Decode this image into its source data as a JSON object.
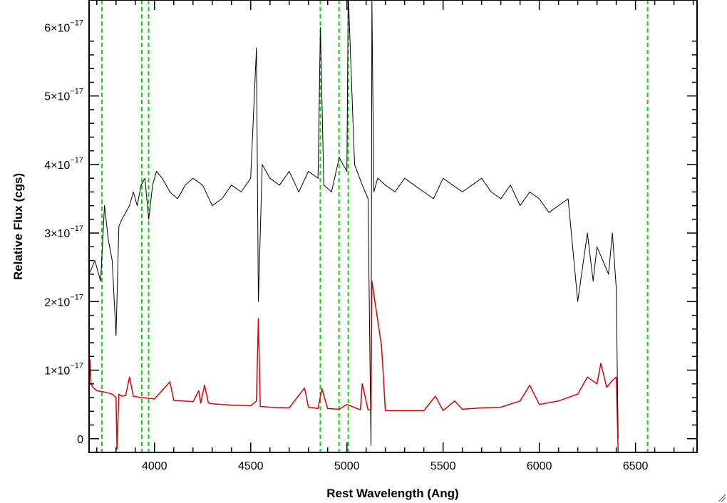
{
  "chart_data": {
    "type": "line",
    "title": "",
    "xlabel": "Rest Wavelength (Ang)",
    "ylabel": "Relative Flux (cgs)",
    "xlim": [
      3660,
      6820
    ],
    "ylim": [
      -2e-18,
      6.4e-17
    ],
    "xticks": [
      4000,
      4500,
      5000,
      5500,
      6000,
      6500
    ],
    "xtick_labels": [
      "4000",
      "4500",
      "5000",
      "5500",
      "6000",
      "6500"
    ],
    "yticks": [
      0,
      1e-17,
      2e-17,
      3e-17,
      4e-17,
      5e-17,
      6e-17
    ],
    "ytick_labels": [
      {
        "mantissa": "0",
        "exponent": ""
      },
      {
        "mantissa": "1×10",
        "exponent": "−17"
      },
      {
        "mantissa": "2×10",
        "exponent": "−17"
      },
      {
        "mantissa": "3×10",
        "exponent": "−17"
      },
      {
        "mantissa": "4×10",
        "exponent": "−17"
      },
      {
        "mantissa": "5×10",
        "exponent": "−17"
      },
      {
        "mantissa": "6×10",
        "exponent": "−17"
      }
    ],
    "grid": false,
    "legend": false,
    "series": [
      {
        "color": "#000000",
        "x": [
          3660,
          3690,
          3720,
          3740,
          3760,
          3780,
          3800,
          3815,
          3830,
          3850,
          3870,
          3890,
          3910,
          3930,
          3950,
          3970,
          3990,
          4010,
          4040,
          4080,
          4120,
          4160,
          4200,
          4250,
          4300,
          4350,
          4400,
          4450,
          4500,
          4530,
          4540,
          4560,
          4600,
          4650,
          4700,
          4750,
          4800,
          4850,
          4862,
          4880,
          4920,
          4960,
          5000,
          5007,
          5040,
          5080,
          5110,
          5125,
          5130,
          5140,
          5160,
          5200,
          5250,
          5300,
          5350,
          5400,
          5450,
          5500,
          5550,
          5600,
          5650,
          5700,
          5750,
          5800,
          5850,
          5900,
          5950,
          6000,
          6050,
          6100,
          6150,
          6180,
          6200,
          6220,
          6250,
          6280,
          6300,
          6330,
          6360,
          6380,
          6400,
          6410
        ],
        "y": [
          2.4,
          2.6,
          2.3,
          3.4,
          2.9,
          2.6,
          1.5,
          3.1,
          3.2,
          3.3,
          3.4,
          3.6,
          3.4,
          3.7,
          3.8,
          3.2,
          3.7,
          3.9,
          3.8,
          3.6,
          3.5,
          3.7,
          3.8,
          3.7,
          3.4,
          3.5,
          3.7,
          3.6,
          3.8,
          5.7,
          2.0,
          4.0,
          3.8,
          3.7,
          3.9,
          3.6,
          3.9,
          3.8,
          6.0,
          3.7,
          3.6,
          4.1,
          3.9,
          6.5,
          4.0,
          3.7,
          3.5,
          -0.1,
          6.4,
          3.6,
          3.8,
          3.7,
          3.6,
          3.8,
          3.7,
          3.6,
          3.5,
          3.8,
          3.7,
          3.6,
          3.7,
          3.8,
          3.6,
          3.5,
          3.7,
          3.4,
          3.6,
          3.5,
          3.3,
          3.4,
          3.5,
          2.6,
          2.0,
          2.4,
          3.0,
          2.3,
          2.8,
          2.6,
          2.4,
          3.0,
          2.2,
          0.0
        ]
      },
      {
        "color": "#e00000",
        "x": [
          3660,
          3665,
          3670,
          3680,
          3700,
          3740,
          3780,
          3800,
          3805,
          3815,
          3830,
          3850,
          3870,
          3890,
          3930,
          3970,
          4000,
          4080,
          4100,
          4200,
          4230,
          4240,
          4260,
          4280,
          4300,
          4400,
          4500,
          4530,
          4540,
          4550,
          4600,
          4700,
          4780,
          4800,
          4850,
          4870,
          4900,
          4960,
          5000,
          5070,
          5080,
          5110,
          5125,
          5130,
          5180,
          5200,
          5300,
          5400,
          5460,
          5500,
          5560,
          5600,
          5700,
          5800,
          5900,
          5950,
          6000,
          6100,
          6200,
          6250,
          6300,
          6320,
          6350,
          6380,
          6400,
          6410,
          6500,
          6600,
          6700,
          6820
        ],
        "y": [
          0.75,
          1.15,
          0.8,
          0.75,
          0.7,
          0.68,
          0.65,
          0.6,
          -0.15,
          0.65,
          0.62,
          0.63,
          0.9,
          0.62,
          0.6,
          0.59,
          0.58,
          0.83,
          0.56,
          0.54,
          0.7,
          0.52,
          0.78,
          0.52,
          0.51,
          0.49,
          0.48,
          0.55,
          1.75,
          0.47,
          0.46,
          0.45,
          0.74,
          0.46,
          0.44,
          0.73,
          0.44,
          0.43,
          0.5,
          0.42,
          0.8,
          0.42,
          0.42,
          2.3,
          1.35,
          0.41,
          0.41,
          0.41,
          0.62,
          0.41,
          0.55,
          0.43,
          0.45,
          0.46,
          0.55,
          0.78,
          0.5,
          0.55,
          0.65,
          0.9,
          0.8,
          1.1,
          0.75,
          0.85,
          0.9,
          -0.2,
          -0.2,
          -0.2,
          -0.2,
          -0.2
        ]
      }
    ],
    "vlines": {
      "color": "#00dd00",
      "style": "dashed",
      "x": [
        3727,
        3934,
        3969,
        4862,
        4959,
        5007,
        6563
      ]
    }
  }
}
